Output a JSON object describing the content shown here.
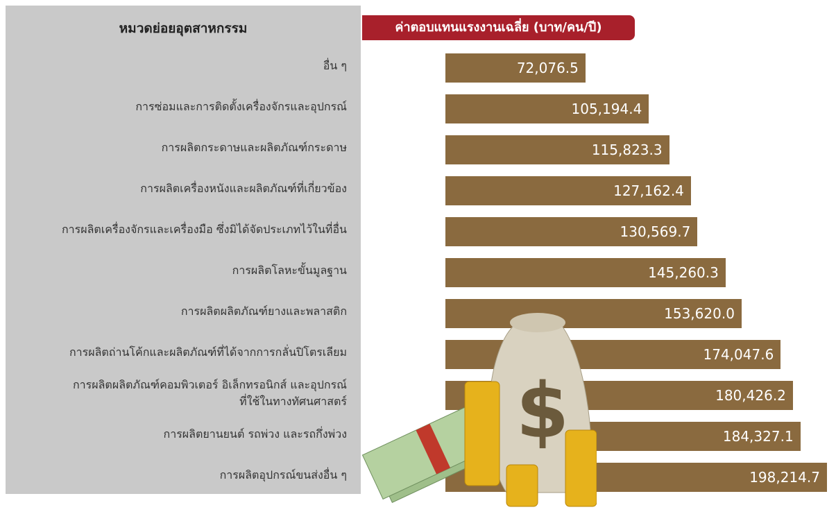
{
  "chart_data": {
    "type": "bar",
    "orientation": "horizontal",
    "title": "หมวดย่อยอุตสาหกรรม",
    "value_title": "ค่าตอบแทนแรงงานเฉลี่ย (บาท/คน/ปี)",
    "color": "#8a6a3f",
    "categories": [
      "อื่น ๆ",
      "การซ่อมและการติดตั้งเครื่องจักรและอุปกรณ์",
      "การผลิตกระดาษและผลิตภัณฑ์กระดาษ",
      "การผลิตเครื่องหนังและผลิตภัณฑ์ที่เกี่ยวข้อง",
      "การผลิตเครื่องจักรและเครื่องมือ ซึ่งมิได้จัดประเภทไว้ในที่อื่น",
      "การผลิตโลหะขั้นมูลฐาน",
      "การผลิตผลิตภัณฑ์ยางและพลาสติก",
      "การผลิตถ่านโค้กและผลิตภัณฑ์ที่ได้จากการกลั่นปิโตรเลียม",
      "การผลิตผลิตภัณฑ์คอมพิวเตอร์ อิเล็กทรอนิกส์ และอุปกรณ์\nที่ใช้ในทางทัศนศาสตร์",
      "การผลิตยานยนต์ รถพ่วง และรถกึ่งพ่วง",
      "การผลิตอุปกรณ์ขนส่งอื่น ๆ"
    ],
    "values": [
      72076.5,
      105194.4,
      115823.3,
      127162.4,
      130569.7,
      145260.3,
      153620.0,
      174047.6,
      180426.2,
      184327.1,
      198214.7
    ],
    "value_labels": [
      "72,076.5",
      "105,194.4",
      "115,823.3",
      "127,162.4",
      "130,569.7",
      "145,260.3",
      "153,620.0",
      "174,047.6",
      "180,426.2",
      "184,327.1",
      "198,214.7"
    ]
  }
}
